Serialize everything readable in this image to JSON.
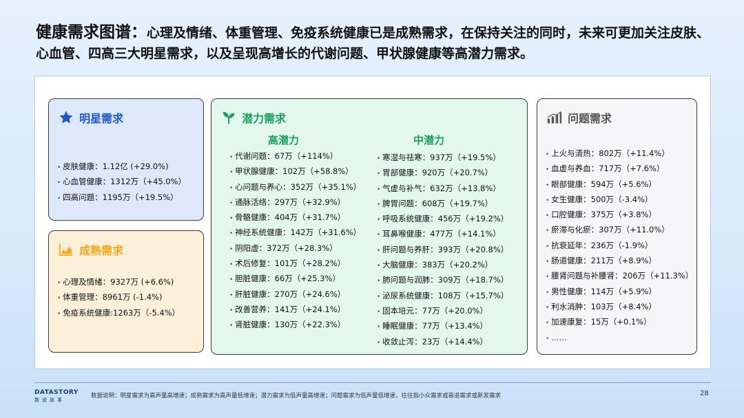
{
  "header": {
    "title_main": "健康需求图谱：",
    "title_rest": "心理及情绪、体重管理、免疫系统健康已是成熟需求，在保持关注的同时，未来可更加关注皮肤、心血管、四高三大明星需求，以及呈现高增长的代谢问题、甲状腺健康等高潜力需求。"
  },
  "star": {
    "title": "明星需求",
    "icon": "star-icon",
    "color": "#1f57c7",
    "items": [
      "皮肤健康：1.12亿 (+29.0%)",
      "心血管健康：1312万（+45.0%）",
      "四高问题：1195万（+19.5%）"
    ]
  },
  "mature": {
    "title": "成熟需求",
    "icon": "area-chart-icon",
    "color": "#f0a81c",
    "items": [
      "心理及情绪：9327万 (+6.6%)",
      "体重管理：8961万 (-1.4%)",
      "免疫系统健康:1263万（-5.4%）"
    ]
  },
  "potential": {
    "title": "潜力需求",
    "icon": "sprout-icon",
    "color": "#1a9e61",
    "high": {
      "title": "高潜力",
      "items": [
        "代谢问题：67万（+114%）",
        "甲状腺健康：102万（+58.8%）",
        "心问题与养心：352万（+35.1%）",
        "通脉活络：297万（+32.9%）",
        "骨骼健康：404万（+31.7%）",
        "神经系统健康：142万（+31.6%）",
        "阴阳虚：372万（+28.3%）",
        "术后修复：101万（+28.2%）",
        "胆脏健康：66万（+25.3%）",
        "肝脏健康：270万（+24.6%）",
        "改善营养：141万（+24.1%）",
        "肾脏健康：130万（+22.3%）"
      ]
    },
    "mid": {
      "title": "中潜力",
      "items": [
        "寒湿与祛寒：937万（+19.5%）",
        "胃部健康：920万（+20.7%）",
        "气虚与补气：632万（+13.8%）",
        "脾胃问题：608万（+19.7%）",
        "呼吸系统健康：456万（+19.2%）",
        "耳鼻喉健康：477万（+14.1%）",
        "肝问题与养肝：393万（+20.8%）",
        "大脑健康：383万（+20.2%）",
        "肺问题与润肺：309万（+18.7%）",
        "泌尿系统健康：108万（+15.7%）",
        "固本培元：77万（+20.0%）",
        "睡眠健康：77万（+13.4%）",
        "收敛止泻：23万（+14.4%）"
      ]
    }
  },
  "problem": {
    "title": "问题需求",
    "icon": "bar-chart-icon",
    "color": "#555555",
    "items": [
      "上火与清热：802万（+11.4%）",
      "血虚与养血：717万（+7.6%）",
      "眼部健康：594万（+5.6%）",
      "女生健康：500万（-3.4%）",
      "口腔健康：375万（+3.8%）",
      "瘀滞与化瘀：307万（+11.0%）",
      "抗衰延年：236万（-1.9%）",
      "肠道健康：211万（+8.9%）",
      "腰肾问题与补腰肾：206万（+11.3%）",
      "男性健康：114万（+5.9%）",
      "利水消肿：103万（+8.4%）",
      "加速康复：15万（+0.1%）",
      "……"
    ]
  },
  "footer": {
    "logo_main": "DATASTORY",
    "logo_sub": "数说故事",
    "note": "数据说明：明星需求为高声量高增速；成熟需求为高声量低增速；潜力需求为低声量高增速；问题需求为低声量低增速，往往指小众需求或衰退需求或新发需求",
    "page": "28"
  }
}
